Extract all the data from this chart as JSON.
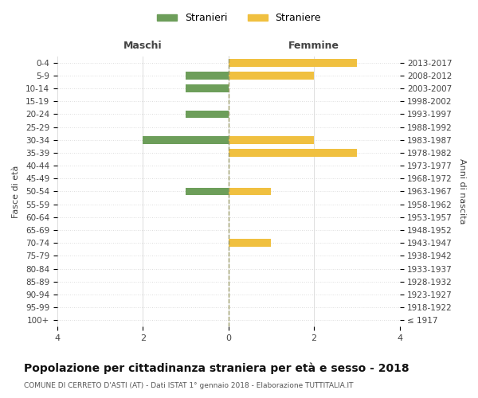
{
  "age_groups": [
    "100+",
    "95-99",
    "90-94",
    "85-89",
    "80-84",
    "75-79",
    "70-74",
    "65-69",
    "60-64",
    "55-59",
    "50-54",
    "45-49",
    "40-44",
    "35-39",
    "30-34",
    "25-29",
    "20-24",
    "15-19",
    "10-14",
    "5-9",
    "0-4"
  ],
  "birth_years": [
    "≤ 1917",
    "1918-1922",
    "1923-1927",
    "1928-1932",
    "1933-1937",
    "1938-1942",
    "1943-1947",
    "1948-1952",
    "1953-1957",
    "1958-1962",
    "1963-1967",
    "1968-1972",
    "1973-1977",
    "1978-1982",
    "1983-1987",
    "1988-1992",
    "1993-1997",
    "1998-2002",
    "2003-2007",
    "2008-2012",
    "2013-2017"
  ],
  "stranieri_maschi": [
    0,
    0,
    0,
    0,
    0,
    0,
    0,
    0,
    0,
    0,
    1,
    0,
    0,
    0,
    2,
    0,
    1,
    0,
    1,
    1,
    0
  ],
  "straniere_femmine": [
    0,
    0,
    0,
    0,
    0,
    0,
    1,
    0,
    0,
    0,
    1,
    0,
    0,
    3,
    2,
    0,
    0,
    0,
    0,
    2,
    3
  ],
  "color_maschi": "#6d9e5a",
  "color_femmine": "#f0c040",
  "title": "Popolazione per cittadinanza straniera per età e sesso - 2018",
  "subtitle": "COMUNE DI CERRETO D'ASTI (AT) - Dati ISTAT 1° gennaio 2018 - Elaborazione TUTTITALIA.IT",
  "xlabel_left": "Maschi",
  "xlabel_right": "Femmine",
  "ylabel_left": "Fasce di età",
  "ylabel_right": "Anni di nascita",
  "legend_maschi": "Stranieri",
  "legend_femmine": "Straniere",
  "xlim": 4,
  "background_color": "#ffffff",
  "grid_color": "#dddddd"
}
